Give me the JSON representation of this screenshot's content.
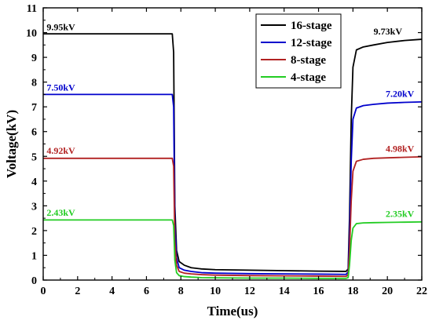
{
  "chart_data": {
    "type": "line",
    "xlabel": "Time(us)",
    "ylabel": "Voltage(kV)",
    "xlim": [
      0,
      22
    ],
    "ylim": [
      0,
      11
    ],
    "xticks": [
      0,
      2,
      4,
      6,
      8,
      10,
      12,
      14,
      16,
      18,
      20,
      22
    ],
    "yticks": [
      0,
      1,
      2,
      3,
      4,
      5,
      6,
      7,
      8,
      9,
      10,
      11
    ],
    "grid": false,
    "legend_position": "top-right",
    "series": [
      {
        "name": "16-stage",
        "color": "#000000",
        "x": [
          0,
          7.5,
          7.58,
          7.65,
          7.75,
          7.9,
          8.2,
          8.6,
          9.2,
          10,
          12,
          14,
          16,
          17.6,
          17.72,
          17.8,
          17.9,
          18.0,
          18.2,
          18.6,
          19.2,
          20,
          21,
          22
        ],
        "y": [
          9.95,
          9.95,
          9.2,
          3.0,
          1.2,
          0.75,
          0.6,
          0.5,
          0.45,
          0.42,
          0.4,
          0.38,
          0.36,
          0.35,
          0.45,
          2.5,
          6.5,
          8.6,
          9.3,
          9.42,
          9.5,
          9.6,
          9.68,
          9.73
        ]
      },
      {
        "name": "12-stage",
        "color": "#0000cc",
        "x": [
          0,
          7.5,
          7.58,
          7.65,
          7.75,
          7.9,
          8.2,
          8.6,
          9.2,
          10,
          12,
          14,
          16,
          17.6,
          17.72,
          17.8,
          17.9,
          18.0,
          18.2,
          18.6,
          19.2,
          20,
          21,
          22
        ],
        "y": [
          7.5,
          7.5,
          7.0,
          2.3,
          0.9,
          0.5,
          0.4,
          0.35,
          0.3,
          0.28,
          0.26,
          0.25,
          0.24,
          0.23,
          0.33,
          1.8,
          4.8,
          6.5,
          6.95,
          7.05,
          7.1,
          7.15,
          7.18,
          7.2
        ]
      },
      {
        "name": "8-stage",
        "color": "#b22222",
        "x": [
          0,
          7.5,
          7.58,
          7.65,
          7.75,
          7.9,
          8.2,
          8.6,
          9.2,
          10,
          12,
          14,
          16,
          17.6,
          17.72,
          17.8,
          17.9,
          18.0,
          18.2,
          18.6,
          19.2,
          20,
          21,
          22
        ],
        "y": [
          4.92,
          4.92,
          4.6,
          1.6,
          0.6,
          0.35,
          0.28,
          0.25,
          0.22,
          0.2,
          0.18,
          0.17,
          0.16,
          0.15,
          0.22,
          1.2,
          3.2,
          4.4,
          4.8,
          4.88,
          4.92,
          4.94,
          4.96,
          4.98
        ]
      },
      {
        "name": "4-stage",
        "color": "#22cc22",
        "x": [
          0,
          7.5,
          7.58,
          7.65,
          7.75,
          7.9,
          8.2,
          8.6,
          9.2,
          10,
          12,
          14,
          16,
          17.6,
          17.72,
          17.8,
          17.9,
          18.0,
          18.2,
          18.6,
          19.2,
          20,
          21,
          22
        ],
        "y": [
          2.43,
          2.43,
          2.2,
          0.8,
          0.3,
          0.18,
          0.14,
          0.12,
          0.1,
          0.09,
          0.08,
          0.08,
          0.07,
          0.07,
          0.1,
          0.6,
          1.6,
          2.1,
          2.28,
          2.31,
          2.32,
          2.33,
          2.34,
          2.35
        ]
      }
    ],
    "annotations": [
      {
        "text": "9.95kV",
        "x": 0.2,
        "y": 10.1,
        "color": "#000000"
      },
      {
        "text": "7.50kV",
        "x": 0.2,
        "y": 7.65,
        "color": "#0000cc"
      },
      {
        "text": "4.92kV",
        "x": 0.2,
        "y": 5.1,
        "color": "#b22222"
      },
      {
        "text": "2.43kV",
        "x": 0.2,
        "y": 2.6,
        "color": "#22cc22"
      },
      {
        "text": "9.73kV",
        "x": 19.2,
        "y": 9.92,
        "color": "#000000"
      },
      {
        "text": "7.20kV",
        "x": 19.9,
        "y": 7.4,
        "color": "#0000cc"
      },
      {
        "text": "4.98kV",
        "x": 19.9,
        "y": 5.18,
        "color": "#b22222"
      },
      {
        "text": "2.35kV",
        "x": 19.9,
        "y": 2.55,
        "color": "#22cc22"
      }
    ]
  }
}
